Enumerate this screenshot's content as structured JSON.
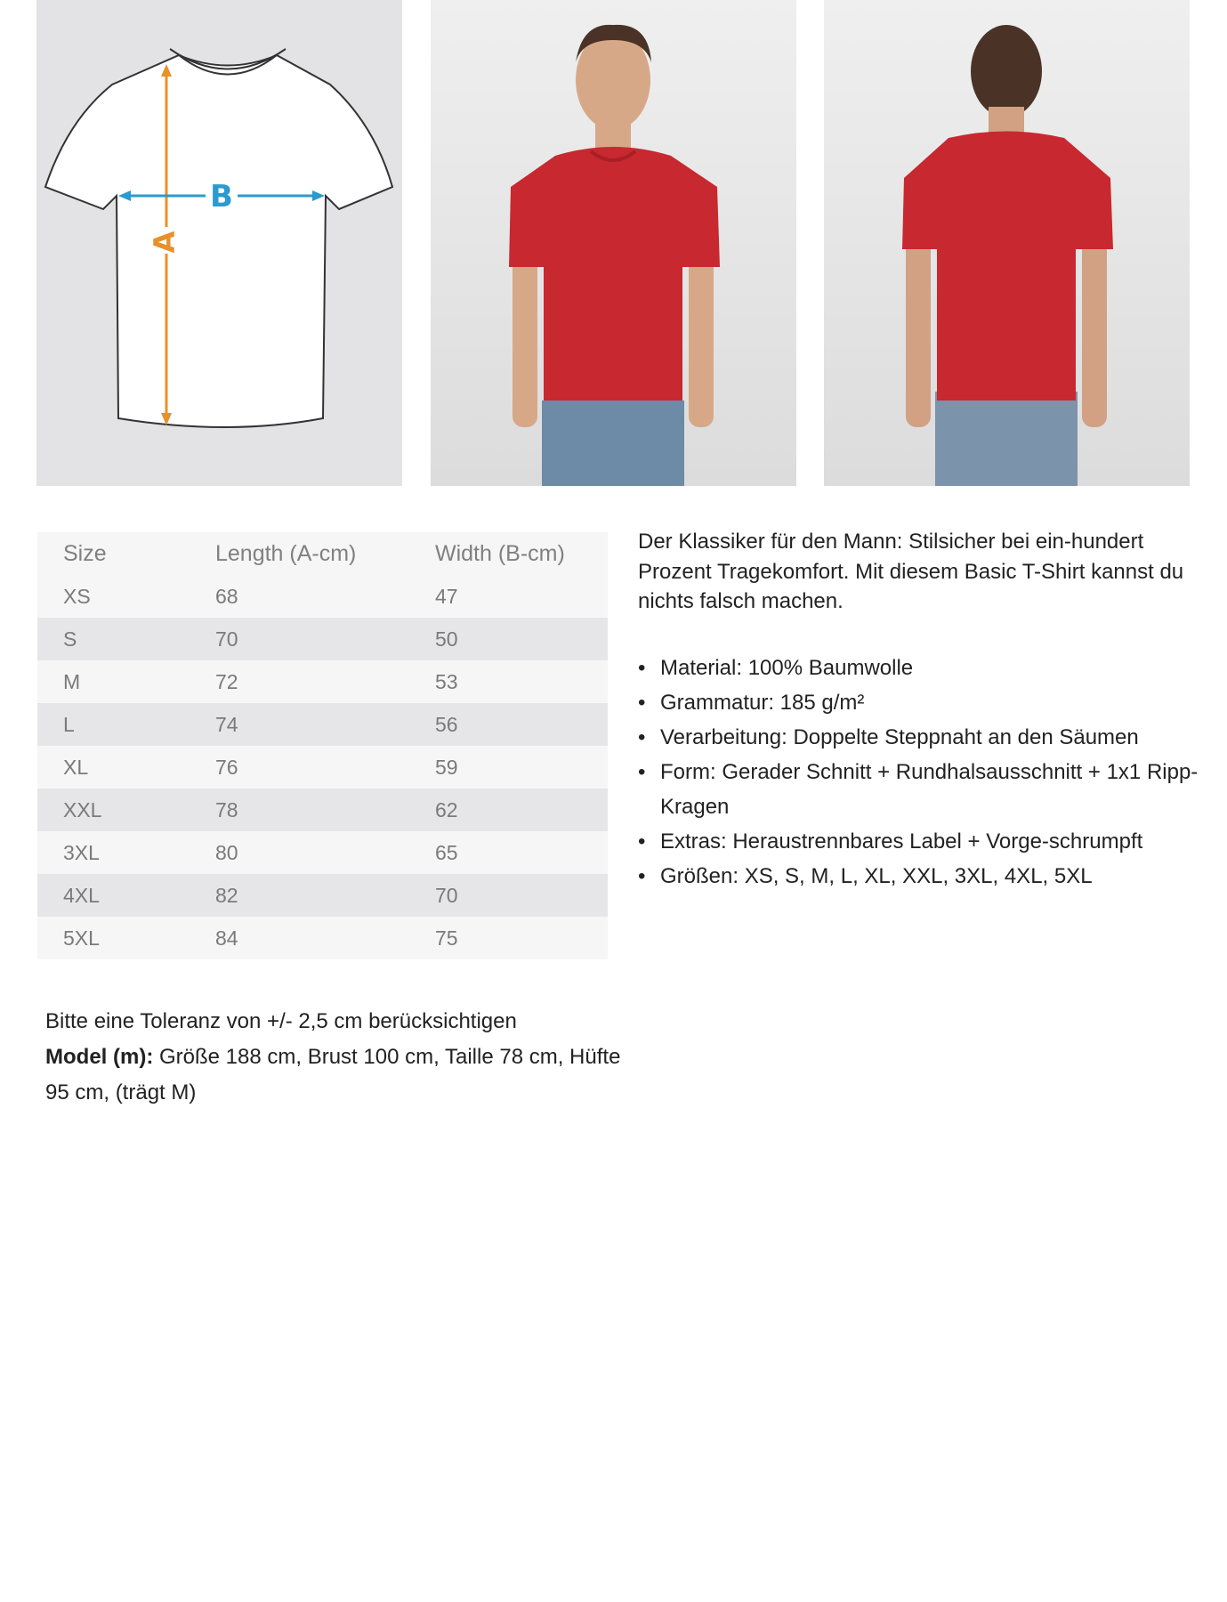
{
  "images": {
    "diagram": {
      "label_a": "A",
      "label_b": "B",
      "color_a": "#e8902a",
      "color_b": "#2a9ad0"
    },
    "front_photo": {
      "shirt_color": "#c8282f"
    },
    "back_photo": {
      "shirt_color": "#c8282f"
    }
  },
  "size_table": {
    "headers": [
      "Size",
      "Length (A-cm)",
      "Width (B-cm)"
    ],
    "rows": [
      [
        "XS",
        "68",
        "47"
      ],
      [
        "S",
        "70",
        "50"
      ],
      [
        "M",
        "72",
        "53"
      ],
      [
        "L",
        "74",
        "56"
      ],
      [
        "XL",
        "76",
        "59"
      ],
      [
        "XXL",
        "78",
        "62"
      ],
      [
        "3XL",
        "80",
        "65"
      ],
      [
        "4XL",
        "82",
        "70"
      ],
      [
        "5XL",
        "84",
        "75"
      ]
    ]
  },
  "description": "Der Klassiker für den Mann: Stilsicher bei ein-hundert Prozent Tragekomfort. Mit diesem Basic T-Shirt kannst du nichts falsch machen.",
  "features": [
    "Material: 100% Baumwolle",
    "Grammatur: 185 g/m²",
    "Verarbeitung: Doppelte Steppnaht an den Säumen",
    "Form: Gerader Schnitt + Rundhalsausschnitt + 1x1 Ripp-Kragen",
    "Extras: Heraustrennbares Label + Vorge-schrumpft",
    "Größen: XS, S, M, L, XL, XXL, 3XL, 4XL, 5XL"
  ],
  "notes": {
    "tolerance": "Bitte eine Toleranz von +/- 2,5 cm berücksichtigen",
    "model_label": "Model (m):",
    "model_text": "Größe 188 cm, Brust 100 cm, Taille 78 cm, Hüfte 95 cm, (trägt M)"
  }
}
